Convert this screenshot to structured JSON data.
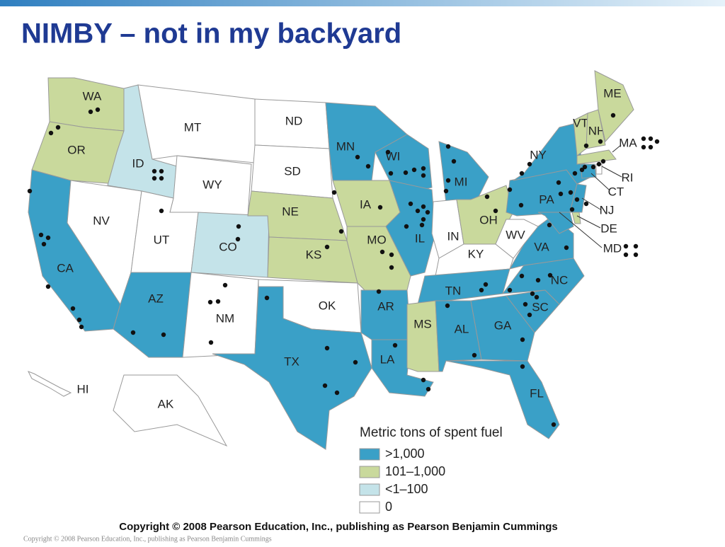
{
  "title": "NIMBY – not in my backyard",
  "legend": {
    "title": "Metric tons of spent fuel",
    "items": [
      {
        "label": ">1,000",
        "color": "#3aa0c7"
      },
      {
        "label": "101–1,000",
        "color": "#c9d99c"
      },
      {
        "label": "<1–100",
        "color": "#c4e3e9"
      },
      {
        "label": "0",
        "color": "#ffffff"
      }
    ]
  },
  "states": [
    {
      "label": "WA",
      "category": 1
    },
    {
      "label": "OR",
      "category": 1
    },
    {
      "label": "CA",
      "category": 0
    },
    {
      "label": "NV",
      "category": 3
    },
    {
      "label": "ID",
      "category": 2
    },
    {
      "label": "MT",
      "category": 3
    },
    {
      "label": "WY",
      "category": 3
    },
    {
      "label": "UT",
      "category": 3
    },
    {
      "label": "CO",
      "category": 2
    },
    {
      "label": "AZ",
      "category": 0
    },
    {
      "label": "NM",
      "category": 3
    },
    {
      "label": "ND",
      "category": 3
    },
    {
      "label": "SD",
      "category": 3
    },
    {
      "label": "NE",
      "category": 1
    },
    {
      "label": "KS",
      "category": 1
    },
    {
      "label": "OK",
      "category": 3
    },
    {
      "label": "TX",
      "category": 0
    },
    {
      "label": "MN",
      "category": 0
    },
    {
      "label": "IA",
      "category": 1
    },
    {
      "label": "MO",
      "category": 1
    },
    {
      "label": "AR",
      "category": 0
    },
    {
      "label": "LA",
      "category": 0
    },
    {
      "label": "WI",
      "category": 0
    },
    {
      "label": "IL",
      "category": 0
    },
    {
      "label": "MI",
      "category": 0
    },
    {
      "label": "IN",
      "category": 3
    },
    {
      "label": "OH",
      "category": 1
    },
    {
      "label": "KY",
      "category": 3
    },
    {
      "label": "TN",
      "category": 0
    },
    {
      "label": "MS",
      "category": 1
    },
    {
      "label": "AL",
      "category": 0
    },
    {
      "label": "GA",
      "category": 0
    },
    {
      "label": "FL",
      "category": 0
    },
    {
      "label": "SC",
      "category": 0
    },
    {
      "label": "NC",
      "category": 0
    },
    {
      "label": "VA",
      "category": 0
    },
    {
      "label": "WV",
      "category": 3
    },
    {
      "label": "PA",
      "category": 0
    },
    {
      "label": "NY",
      "category": 0
    },
    {
      "label": "VT",
      "category": 1
    },
    {
      "label": "NH",
      "category": 1
    },
    {
      "label": "ME",
      "category": 1
    },
    {
      "label": "MA",
      "category": 1
    },
    {
      "label": "CT",
      "category": 0
    },
    {
      "label": "RI",
      "category": 3
    },
    {
      "label": "NJ",
      "category": 0
    },
    {
      "label": "DE",
      "category": 1
    },
    {
      "label": "MD",
      "category": 0
    },
    {
      "label": "HI",
      "category": 3
    },
    {
      "label": "AK",
      "category": 3
    }
  ],
  "copyright": "Copyright © 2008 Pearson Education, Inc., publishing as Pearson Benjamin Cummings",
  "footer": "Copyright © 2008 Pearson Education, Inc., publishing as Pearson Benjamin Cummings"
}
